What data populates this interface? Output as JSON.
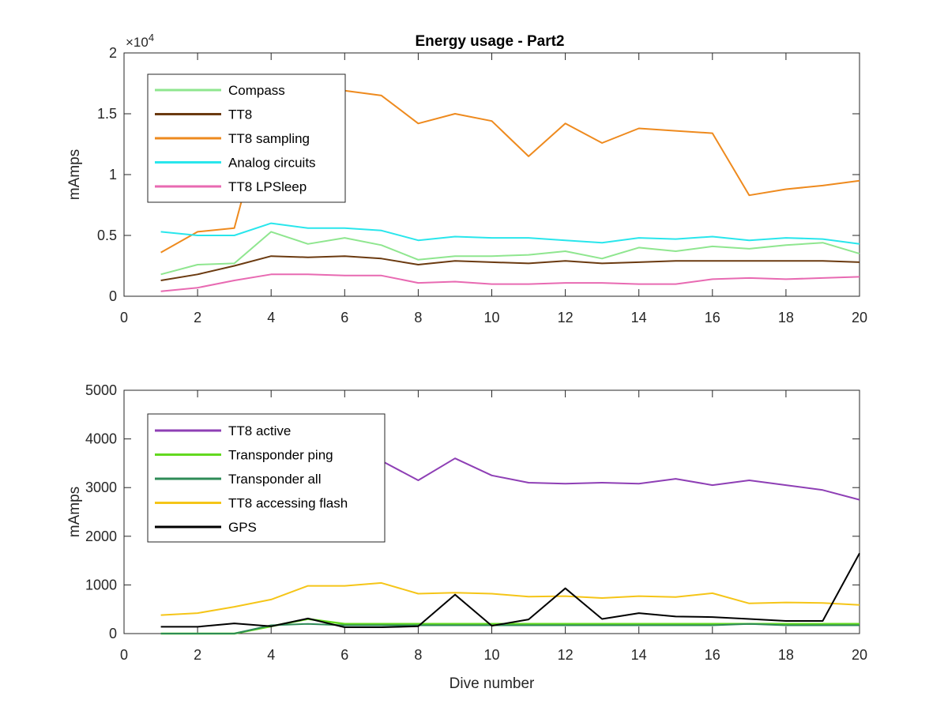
{
  "chart_data": [
    {
      "type": "line",
      "title": "Energy usage - Part2",
      "xlabel": "",
      "ylabel": "mAmps",
      "xlim": [
        0,
        20
      ],
      "ylim": [
        0,
        20000
      ],
      "y_exponent_label": "×10",
      "y_exponent_power": "4",
      "xticks": [
        0,
        2,
        4,
        6,
        8,
        10,
        12,
        14,
        16,
        18,
        20
      ],
      "yticks": [
        0,
        5000,
        10000,
        15000,
        20000
      ],
      "ytick_labels": [
        "0",
        "0.5",
        "1",
        "1.5",
        "2"
      ],
      "grid": false,
      "legend_position": "top-left",
      "x": [
        1,
        2,
        3,
        4,
        5,
        6,
        7,
        8,
        9,
        10,
        11,
        12,
        13,
        14,
        15,
        16,
        17,
        18,
        19,
        20
      ],
      "series": [
        {
          "name": "Compass",
          "color": "#8fe68f",
          "values": [
            1800,
            2600,
            2700,
            5300,
            4300,
            4800,
            4200,
            3000,
            3300,
            3300,
            3400,
            3700,
            3100,
            4000,
            3700,
            4100,
            3900,
            4200,
            4400,
            3500
          ]
        },
        {
          "name": "TT8",
          "color": "#6b3a10",
          "values": [
            1300,
            1800,
            2500,
            3300,
            3200,
            3300,
            3100,
            2600,
            2900,
            2800,
            2700,
            2900,
            2700,
            2800,
            2900,
            2900,
            2900,
            2900,
            2900,
            2800
          ]
        },
        {
          "name": "TT8 sampling",
          "color": "#ee8a1e",
          "values": [
            3600,
            5300,
            5600,
            16900,
            17100,
            16900,
            16500,
            14200,
            15000,
            14400,
            11500,
            14200,
            12600,
            13800,
            13600,
            13400,
            8300,
            8800,
            9100,
            9500
          ]
        },
        {
          "name": "Analog circuits",
          "color": "#29e6ec",
          "values": [
            5300,
            5000,
            5000,
            6000,
            5600,
            5600,
            5400,
            4600,
            4900,
            4800,
            4800,
            4600,
            4400,
            4800,
            4700,
            4900,
            4600,
            4800,
            4700,
            4300
          ]
        },
        {
          "name": "TT8 LPSleep",
          "color": "#e86ab2",
          "values": [
            400,
            700,
            1300,
            1800,
            1800,
            1700,
            1700,
            1100,
            1200,
            1000,
            1000,
            1100,
            1100,
            1000,
            1000,
            1400,
            1500,
            1400,
            1500,
            1600
          ]
        }
      ]
    },
    {
      "type": "line",
      "title": "",
      "xlabel": "Dive number",
      "ylabel": "mAmps",
      "xlim": [
        0,
        20
      ],
      "ylim": [
        0,
        5000
      ],
      "xticks": [
        0,
        2,
        4,
        6,
        8,
        10,
        12,
        14,
        16,
        18,
        20
      ],
      "yticks": [
        0,
        1000,
        2000,
        3000,
        4000,
        5000
      ],
      "ytick_labels": [
        "0",
        "1000",
        "2000",
        "3000",
        "4000",
        "5000"
      ],
      "grid": false,
      "legend_position": "top-left",
      "x": [
        1,
        2,
        3,
        4,
        5,
        6,
        7,
        8,
        9,
        10,
        11,
        12,
        13,
        14,
        15,
        16,
        17,
        18,
        19,
        20
      ],
      "series": [
        {
          "name": "TT8 active",
          "color": "#8e3fb5",
          "values": [
            3550,
            3700,
            3750,
            3600,
            3600,
            3550,
            3550,
            3150,
            3600,
            3250,
            3100,
            3080,
            3100,
            3080,
            3180,
            3050,
            3150,
            3050,
            2950,
            2750
          ]
        },
        {
          "name": "Transponder ping",
          "color": "#63d91f",
          "values": [
            0,
            0,
            0,
            150,
            300,
            200,
            200,
            200,
            200,
            200,
            200,
            200,
            200,
            200,
            200,
            200,
            200,
            200,
            200,
            200
          ]
        },
        {
          "name": "Transponder all",
          "color": "#2e8b57",
          "values": [
            0,
            0,
            0,
            170,
            200,
            170,
            170,
            170,
            170,
            170,
            170,
            170,
            170,
            170,
            170,
            170,
            200,
            170,
            170,
            170
          ]
        },
        {
          "name": "TT8 accessing flash",
          "color": "#f5c518",
          "values": [
            380,
            420,
            550,
            700,
            980,
            980,
            1040,
            820,
            840,
            820,
            760,
            770,
            730,
            770,
            750,
            830,
            620,
            640,
            630,
            590
          ]
        },
        {
          "name": "GPS",
          "color": "#000000",
          "values": [
            140,
            140,
            210,
            150,
            310,
            130,
            130,
            150,
            800,
            160,
            290,
            930,
            300,
            420,
            350,
            340,
            300,
            260,
            260,
            1650
          ]
        }
      ]
    }
  ]
}
